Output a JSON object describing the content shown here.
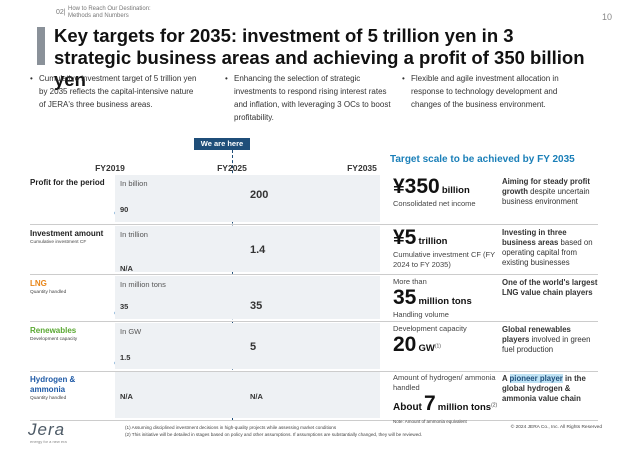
{
  "header": {
    "section": "02|",
    "breadcrumb": [
      "How to Reach Our Destination:",
      "Methods and Numbers"
    ],
    "page": "10",
    "title": "Key targets for 2035: investment of 5 trillion yen in 3 strategic business areas and achieving a profit of 350 billion yen"
  },
  "bullets": [
    "Cumulative investment target of 5 trillion yen by 2035 reflects the capital-intensive nature of JERA's three business areas.",
    "Enhancing the selection of strategic investments to respond rising interest rates and inflation, with leveraging 3 OCs to boost profitability.",
    "Flexible and agile investment allocation in response to technology development and changes of the business environment."
  ],
  "marker": "We are here",
  "columns": [
    "FY2019",
    "FY2025",
    "FY2035"
  ],
  "target_heading": "Target scale to be achieved by FY 2035",
  "rows": [
    {
      "label": "Profit for the period",
      "color": "#222",
      "unit": "In billion",
      "start": "90",
      "current": "200",
      "target": {
        "value": "¥350",
        "unit": "billion",
        "desc": "Consolidated net income"
      },
      "statement": [
        {
          "text": "Aiming for steady profit growth",
          "style": "bold"
        },
        {
          "text": " despite uncertain business environment",
          "style": "normal"
        }
      ]
    },
    {
      "label": "Investment amount",
      "sub": "Cumulative investment CF",
      "color": "#222",
      "unit": "In trillion",
      "start": "N/A",
      "current": "1.4",
      "target": {
        "value": "¥5",
        "unit": "trillion",
        "desc": "Cumulative investment CF (FY 2024 to FY 2035)"
      },
      "statement": [
        {
          "text": "Investing in three business areas",
          "style": "bold"
        },
        {
          "text": " based on operating capital from existing businesses",
          "style": "normal"
        }
      ]
    },
    {
      "label": "LNG",
      "sub": "Quantity handled",
      "color": "#e8861a",
      "unit": "In million tons",
      "start": "35",
      "current": "35",
      "target": {
        "pre": "More than",
        "value": "35",
        "unit": "million tons",
        "desc": "Handling volume"
      },
      "statement": [
        {
          "text": "One of the world's largest LNG value chain players",
          "style": "bold"
        }
      ]
    },
    {
      "label": "Renewables",
      "sub": "Development capacity",
      "color": "#5aa832",
      "unit": "In GW",
      "start": "1.5",
      "current": "5",
      "target": {
        "pre": "Development capacity",
        "value": "20",
        "unit": "GW",
        "sup": "(1)"
      },
      "statement": [
        {
          "text": "Global renewables players",
          "style": "bold"
        },
        {
          "text": " involved in green fuel production",
          "style": "normal"
        }
      ]
    },
    {
      "label": "Hydrogen & ammonia",
      "sub": "Quantity handled",
      "color": "#1f5aa6",
      "start": "N/A",
      "current": "N/A",
      "target": {
        "pre": "Amount of hydrogen/ ammonia handled",
        "lead": "About",
        "value": "7",
        "unit": "million tons",
        "sup": "(2)",
        "note": "Note: Amount of ammonia equivalent"
      },
      "statement": [
        {
          "text": "A ",
          "style": "bold"
        },
        {
          "text": "pioneer player",
          "style": "mark"
        },
        {
          "text": " in the global hydrogen & ammonia value chain",
          "style": "bold"
        }
      ]
    }
  ],
  "footer": {
    "logo": "Jera",
    "tagline": "energy for a new era",
    "notes": [
      "(1) Assuming disciplined investment decisions in high-quality projects while assessing market conditions",
      "(2) This initiative will be detailed in stages based on policy and other assumptions. If assumptions are substantially changed, they will be reviewed."
    ],
    "copyright": "© 2024 JERA Co., Inc. All Rights Reserved"
  }
}
